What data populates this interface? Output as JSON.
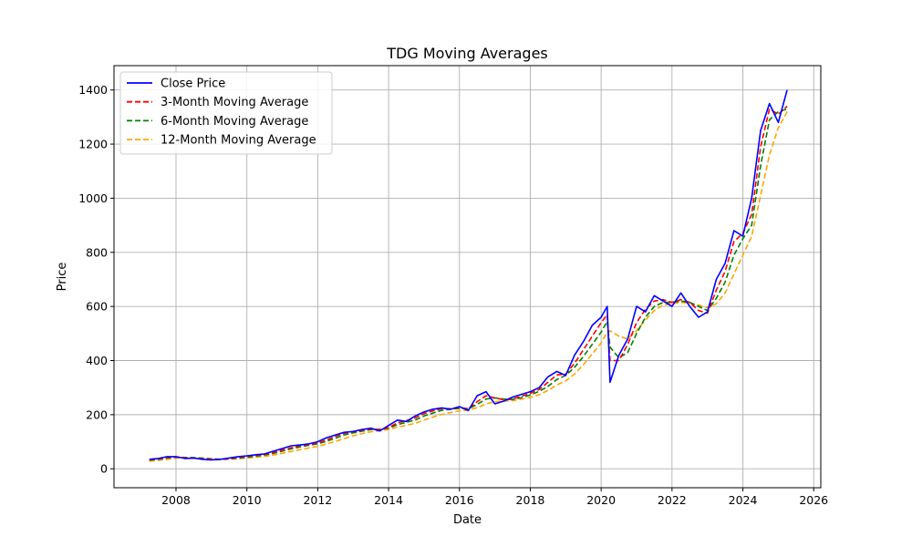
{
  "chart_data": {
    "type": "line",
    "title": "TDG Moving Averages",
    "xlabel": "Date",
    "ylabel": "Price",
    "xlim": [
      2006.25,
      2026.2
    ],
    "ylim": [
      -70,
      1490
    ],
    "x_ticks": [
      2008,
      2010,
      2012,
      2014,
      2016,
      2018,
      2020,
      2022,
      2024,
      2026
    ],
    "x_tick_labels": [
      "2008",
      "2010",
      "2012",
      "2014",
      "2016",
      "2018",
      "2020",
      "2022",
      "2024",
      "2026"
    ],
    "y_ticks": [
      0,
      200,
      400,
      600,
      800,
      1000,
      1200,
      1400
    ],
    "y_tick_labels": [
      "0",
      "200",
      "400",
      "600",
      "800",
      "1000",
      "1200",
      "1400"
    ],
    "grid": true,
    "legend_position": "top-left",
    "x": [
      2007.25,
      2007.5,
      2007.75,
      2008.0,
      2008.25,
      2008.5,
      2008.75,
      2009.0,
      2009.25,
      2009.5,
      2009.75,
      2010.0,
      2010.25,
      2010.5,
      2010.75,
      2011.0,
      2011.25,
      2011.5,
      2011.75,
      2012.0,
      2012.25,
      2012.5,
      2012.75,
      2013.0,
      2013.25,
      2013.5,
      2013.75,
      2014.0,
      2014.25,
      2014.5,
      2014.75,
      2015.0,
      2015.25,
      2015.5,
      2015.75,
      2016.0,
      2016.25,
      2016.5,
      2016.75,
      2017.0,
      2017.25,
      2017.5,
      2017.75,
      2018.0,
      2018.25,
      2018.5,
      2018.75,
      2019.0,
      2019.25,
      2019.5,
      2019.75,
      2020.0,
      2020.17,
      2020.25,
      2020.5,
      2020.75,
      2021.0,
      2021.25,
      2021.5,
      2021.75,
      2022.0,
      2022.25,
      2022.5,
      2022.75,
      2023.0,
      2023.25,
      2023.5,
      2023.75,
      2024.0,
      2024.25,
      2024.5,
      2024.75,
      2025.0,
      2025.25
    ],
    "series": [
      {
        "name": "Close Price",
        "color": "#0000ff",
        "style": "solid",
        "values": [
          35,
          38,
          45,
          45,
          38,
          40,
          35,
          33,
          35,
          40,
          45,
          48,
          52,
          55,
          65,
          75,
          85,
          88,
          92,
          100,
          115,
          125,
          135,
          138,
          145,
          150,
          140,
          160,
          180,
          175,
          195,
          210,
          220,
          225,
          220,
          230,
          215,
          270,
          285,
          240,
          250,
          265,
          275,
          285,
          300,
          340,
          360,
          345,
          420,
          470,
          530,
          560,
          600,
          320,
          420,
          480,
          600,
          580,
          640,
          620,
          600,
          650,
          600,
          560,
          580,
          700,
          760,
          880,
          860,
          1000,
          1250,
          1350,
          1280,
          1400
        ]
      },
      {
        "name": "3-Month Moving Average",
        "color": "#ff0000",
        "style": "dashed",
        "values": [
          33,
          37,
          42,
          44,
          41,
          40,
          37,
          35,
          34,
          37,
          42,
          46,
          50,
          53,
          60,
          69,
          78,
          85,
          89,
          95,
          107,
          120,
          131,
          137,
          142,
          148,
          145,
          152,
          170,
          178,
          188,
          204,
          214,
          222,
          222,
          226,
          222,
          248,
          270,
          262,
          255,
          258,
          268,
          279,
          293,
          320,
          347,
          350,
          390,
          440,
          490,
          540,
          570,
          400,
          400,
          460,
          540,
          590,
          620,
          625,
          615,
          625,
          615,
          585,
          575,
          660,
          730,
          840,
          870,
          940,
          1190,
          1330,
          1310,
          1340
        ]
      },
      {
        "name": "6-Month Moving Average",
        "color": "#008000",
        "style": "dashed",
        "values": [
          32,
          35,
          40,
          43,
          42,
          41,
          39,
          36,
          35,
          36,
          39,
          43,
          47,
          51,
          57,
          65,
          74,
          81,
          87,
          92,
          102,
          113,
          125,
          133,
          139,
          145,
          146,
          150,
          163,
          172,
          180,
          195,
          206,
          216,
          220,
          223,
          222,
          238,
          258,
          262,
          258,
          256,
          263,
          273,
          286,
          305,
          330,
          345,
          375,
          415,
          460,
          505,
          545,
          450,
          410,
          430,
          500,
          560,
          600,
          615,
          615,
          620,
          615,
          600,
          585,
          630,
          690,
          790,
          850,
          900,
          1120,
          1290,
          1320,
          1330
        ]
      },
      {
        "name": "12-Month Moving Average",
        "color": "#ffa500",
        "style": "dashed",
        "values": [
          28,
          31,
          35,
          40,
          41,
          41,
          40,
          38,
          36,
          36,
          37,
          40,
          43,
          46,
          51,
          57,
          64,
          71,
          77,
          83,
          92,
          101,
          112,
          122,
          130,
          137,
          141,
          145,
          154,
          161,
          168,
          180,
          191,
          201,
          208,
          214,
          217,
          226,
          240,
          248,
          250,
          252,
          257,
          264,
          274,
          290,
          310,
          325,
          350,
          385,
          425,
          465,
          505,
          510,
          490,
          480,
          510,
          550,
          585,
          605,
          610,
          615,
          612,
          605,
          595,
          610,
          650,
          720,
          790,
          860,
          1010,
          1160,
          1260,
          1320
        ]
      }
    ]
  }
}
